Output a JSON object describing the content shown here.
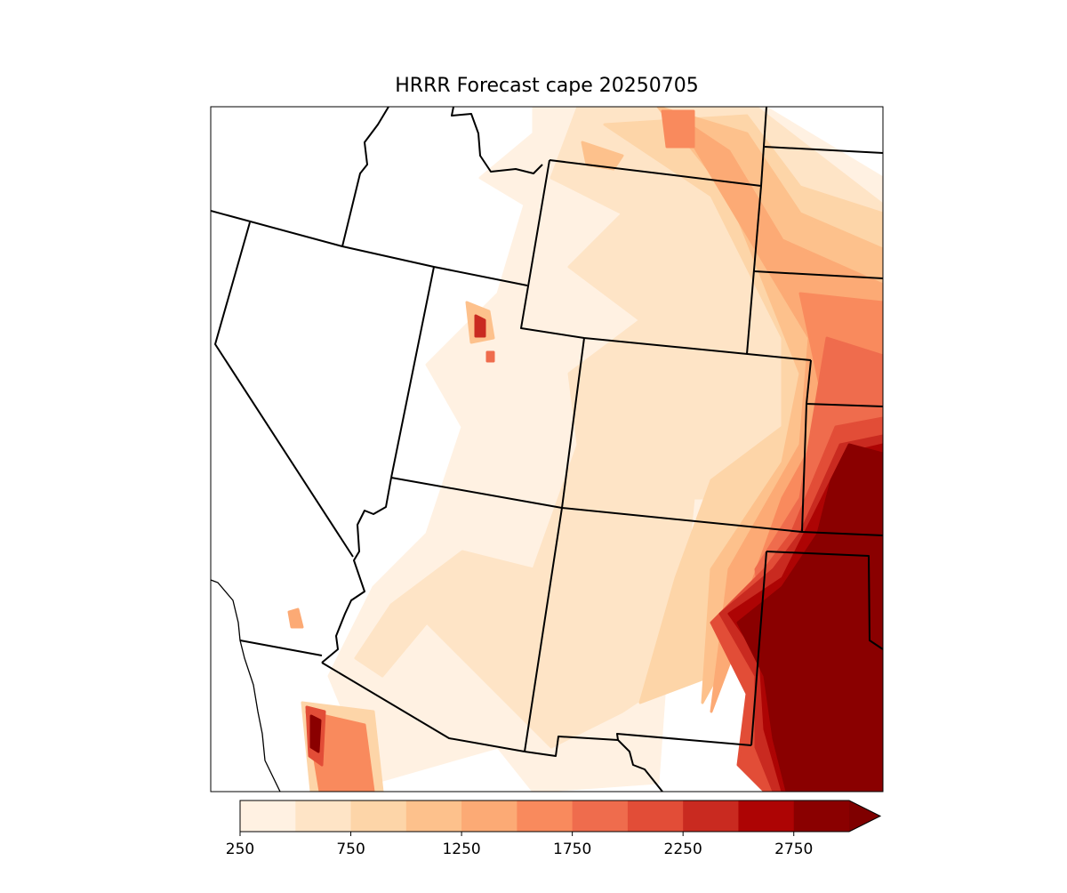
{
  "map": {
    "title": "HRRR Forecast cape 20250705"
  },
  "colorbar": {
    "levels": [
      250,
      500,
      750,
      1000,
      1250,
      1500,
      1750,
      2000,
      2250,
      2500,
      2750,
      3000
    ],
    "colors": [
      "#fff1e2",
      "#fee4c6",
      "#fdd5a8",
      "#fdc18c",
      "#fcaa75",
      "#f98a5d",
      "#ef6c4d",
      "#e24d37",
      "#c92a20",
      "#ad0404",
      "#8a0000"
    ],
    "extend_color": "#7f0000",
    "ticks": [
      250,
      750,
      1250,
      1750,
      2250,
      2750
    ]
  }
}
